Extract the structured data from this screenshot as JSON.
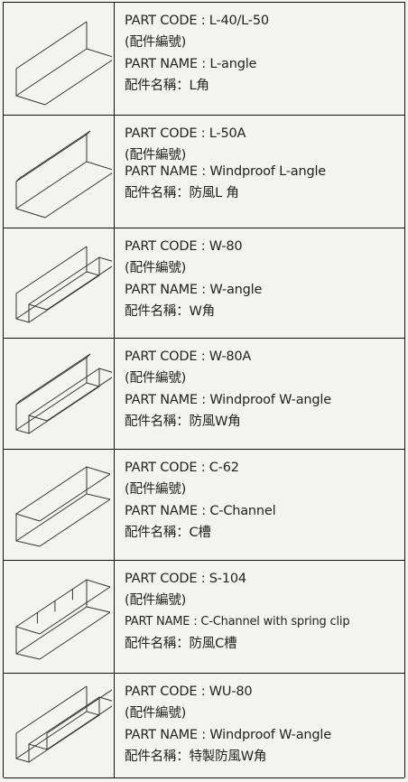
{
  "rows": [
    {
      "code": "PART CODE : L-40/L-50",
      "code_zh": "(配件編號)",
      "name": "PART NAME : L-angle",
      "name_zh": "配件名稱：L角"
    },
    {
      "code": "PART CODE : L-50A",
      "code_zh": "(配件編號)",
      "name": "PART NAME : Windproof L-angle",
      "name_zh": "配件名稱：防風L 角"
    },
    {
      "code": "PART CODE : W-80",
      "code_zh": "(配件編號)",
      "name": "PART NAME : W-angle",
      "name_zh": "配件名稱：W角"
    },
    {
      "code": "PART CODE : W-80A",
      "code_zh": "(配件編號)",
      "name": "PART NAME : Windproof W-angle",
      "name_zh": "配件名稱：防風W角"
    },
    {
      "code": "PART CODE : C-62",
      "code_zh": "(配件編號)",
      "name": "PART NAME : C-Channel",
      "name_zh": "配件名稱：C槽"
    },
    {
      "code": "PART CODE : S-104",
      "code_zh": "(配件編號)",
      "name": "PART NAME : C-Channel with spring clip",
      "name_zh": "配件名稱：防風C槽"
    },
    {
      "code": "PART CODE : WU-80",
      "code_zh": "(配件編號)",
      "name": "PART NAME : Windproof W-angle",
      "name_zh": "配件名稱：特製防風W角"
    }
  ]
}
